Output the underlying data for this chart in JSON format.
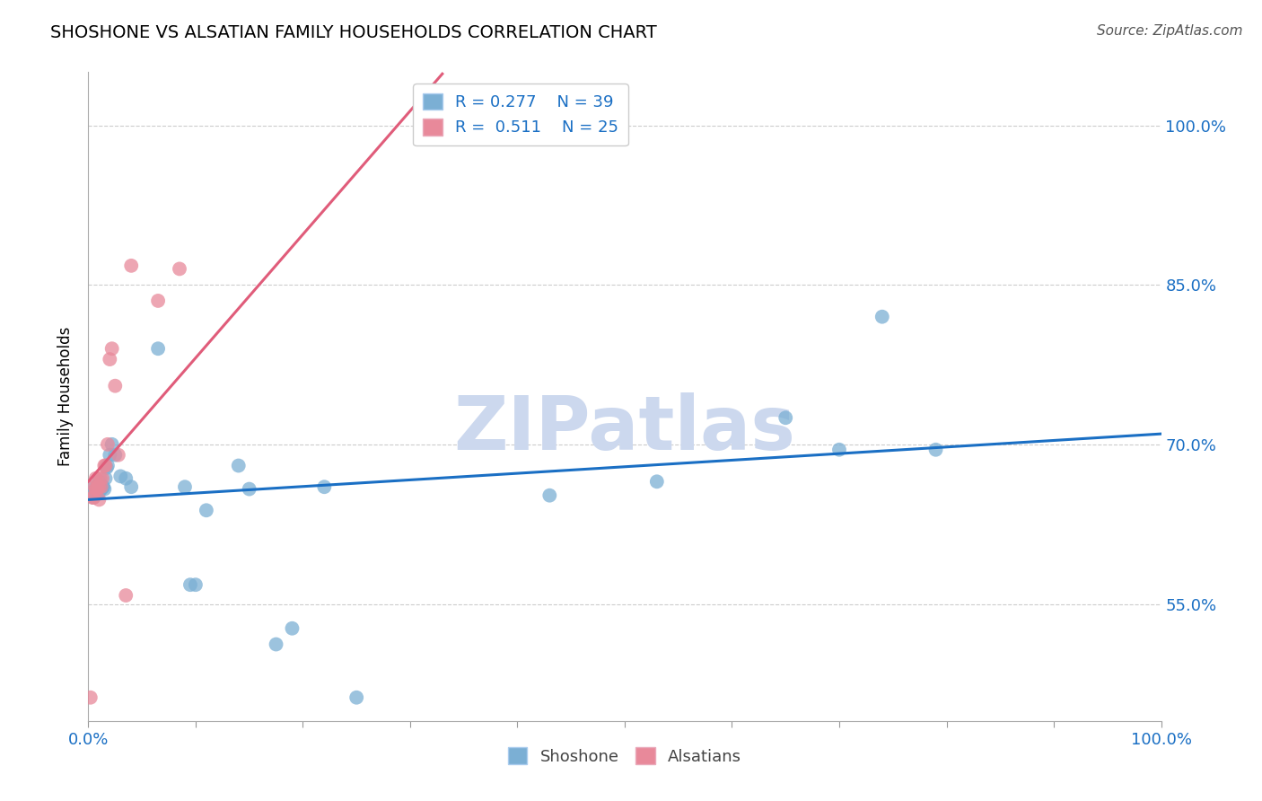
{
  "title": "SHOSHONE VS ALSATIAN FAMILY HOUSEHOLDS CORRELATION CHART",
  "source": "Source: ZipAtlas.com",
  "ylabel": "Family Households",
  "ytick_vals": [
    0.55,
    0.7,
    0.85,
    1.0
  ],
  "ytick_labels": [
    "55.0%",
    "70.0%",
    "85.0%",
    "100.0%"
  ],
  "xlim": [
    0.0,
    1.0
  ],
  "ylim": [
    0.44,
    1.05
  ],
  "shoshone_color": "#7bafd4",
  "alsatian_color": "#e8899a",
  "shoshone_line_color": "#1a6fc4",
  "alsatian_line_color": "#e05c7a",
  "legend_R_shoshone": "0.277",
  "legend_N_shoshone": "39",
  "legend_R_alsatian": "0.511",
  "legend_N_alsatian": "25",
  "shoshone_x": [
    0.004,
    0.005,
    0.006,
    0.007,
    0.008,
    0.009,
    0.01,
    0.01,
    0.011,
    0.012,
    0.013,
    0.014,
    0.015,
    0.016,
    0.017,
    0.018,
    0.02,
    0.022,
    0.025,
    0.03,
    0.035,
    0.04,
    0.065,
    0.09,
    0.095,
    0.1,
    0.11,
    0.14,
    0.15,
    0.175,
    0.19,
    0.22,
    0.25,
    0.43,
    0.53,
    0.65,
    0.7,
    0.74,
    0.79
  ],
  "shoshone_y": [
    0.655,
    0.65,
    0.66,
    0.655,
    0.66,
    0.655,
    0.655,
    0.665,
    0.66,
    0.658,
    0.66,
    0.66,
    0.658,
    0.668,
    0.678,
    0.68,
    0.69,
    0.7,
    0.69,
    0.67,
    0.668,
    0.66,
    0.79,
    0.66,
    0.568,
    0.568,
    0.638,
    0.68,
    0.658,
    0.512,
    0.527,
    0.66,
    0.462,
    0.652,
    0.665,
    0.725,
    0.695,
    0.82,
    0.695
  ],
  "alsatian_x": [
    0.002,
    0.004,
    0.005,
    0.006,
    0.007,
    0.007,
    0.008,
    0.009,
    0.01,
    0.01,
    0.011,
    0.012,
    0.013,
    0.015,
    0.016,
    0.018,
    0.02,
    0.022,
    0.025,
    0.028,
    0.035,
    0.04,
    0.065,
    0.085,
    0.33
  ],
  "alsatian_y": [
    0.462,
    0.65,
    0.65,
    0.66,
    0.658,
    0.668,
    0.658,
    0.66,
    0.648,
    0.66,
    0.668,
    0.66,
    0.668,
    0.68,
    0.68,
    0.7,
    0.78,
    0.79,
    0.755,
    0.69,
    0.558,
    0.868,
    0.835,
    0.865,
    0.99
  ],
  "grid_color": "#cccccc",
  "watermark": "ZIPatlas",
  "watermark_color": "#ccd8ee"
}
